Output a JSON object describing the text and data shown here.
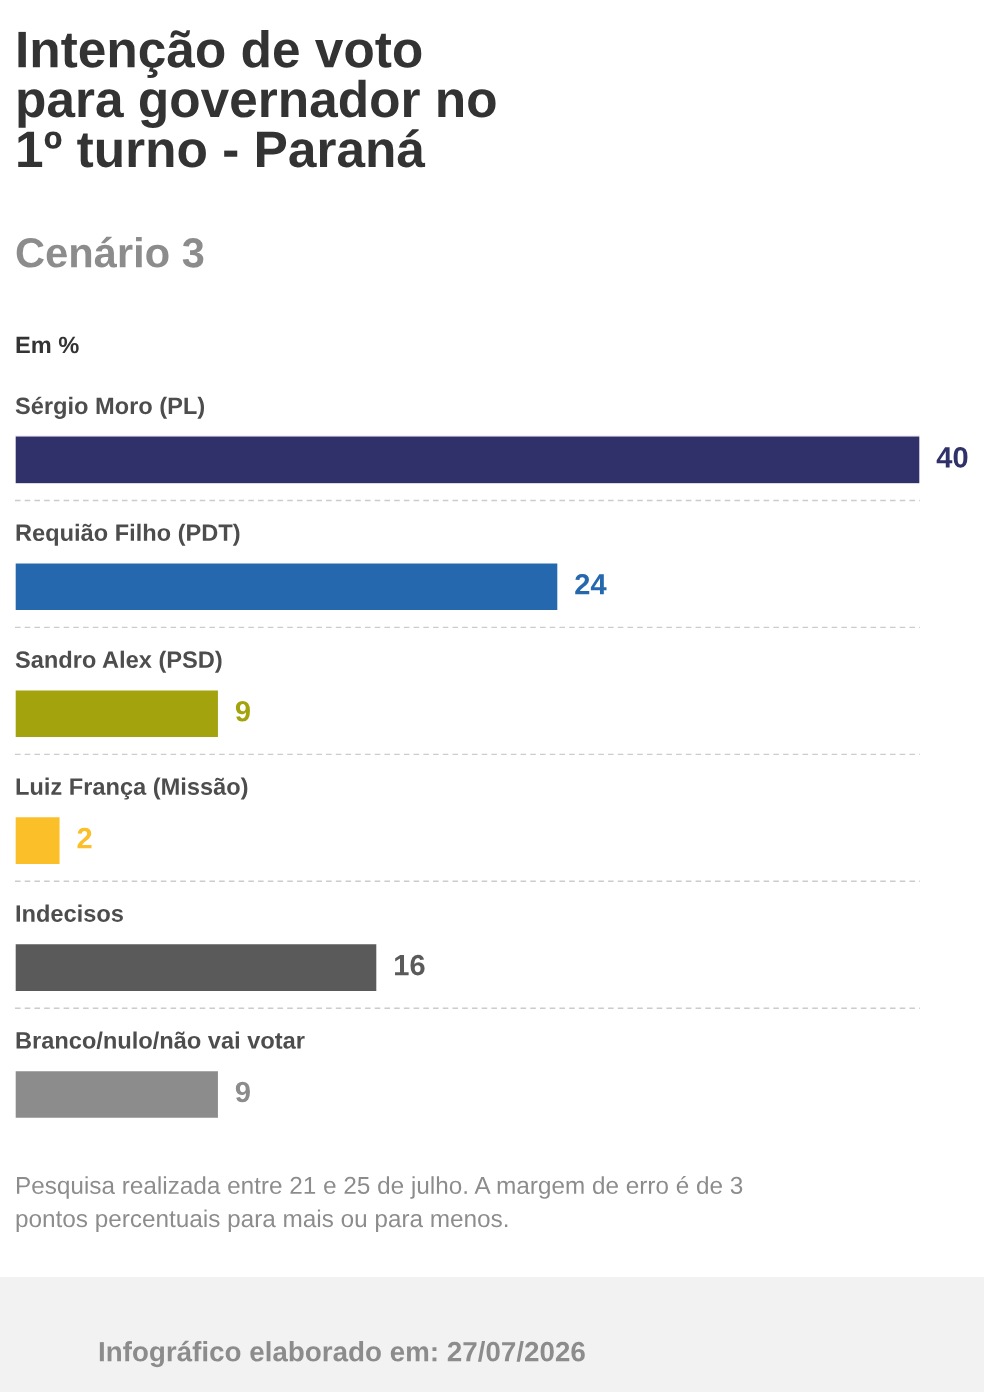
{
  "chart_data": {
    "type": "bar",
    "orientation": "horizontal",
    "title": "Intenção de voto\npara governador no\n1º turno - Paraná",
    "subtitle": "Cenário 3",
    "categories": [
      "Sérgio Moro (PL)",
      "Requião Filho (PDT)",
      "Sandro Alex (PSD)",
      "Luiz França (Missão)",
      "Indecisos",
      "Branco/nulo/não vai votar"
    ],
    "values": [
      40,
      24,
      9,
      2,
      16,
      9
    ],
    "colors": [
      "#30306b",
      "#2568ad",
      "#a3a30d",
      "#fbbf2a",
      "#5a5a5a",
      "#8c8c8c"
    ],
    "data_labels": true,
    "grid": "y",
    "annotations": [
      "Em %",
      "Pesquisa realizada entre 21 e 25 de julho. A margem de erro é de 3\npontos percentuais para mais ou para menos.",
      "Infográfico elaborado em: 27/07/2026"
    ]
  }
}
